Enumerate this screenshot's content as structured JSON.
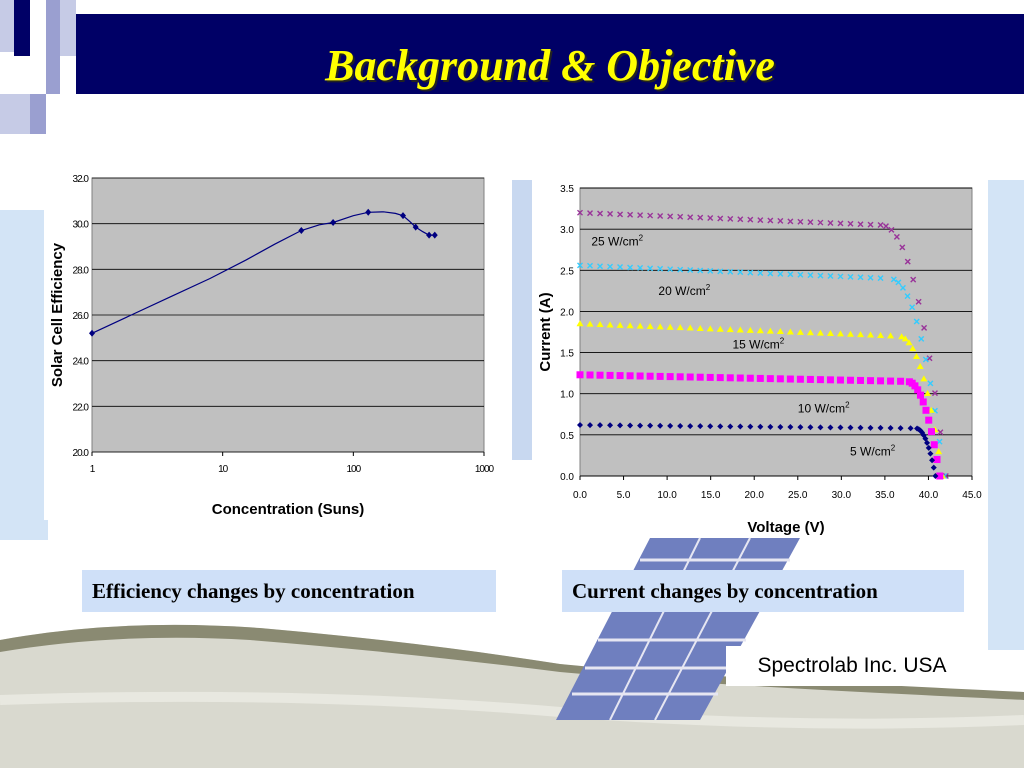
{
  "slide": {
    "title": "Background & Objective",
    "caption_left": "Efficiency changes by concentration",
    "caption_right": "Current changes by concentration",
    "credit": "Spectrolab Inc. USA",
    "colors": {
      "title_bar": "#000066",
      "title_text": "#ffff00",
      "caption_bg": "#cfe0f8"
    }
  },
  "chart_data": [
    {
      "type": "line",
      "title": "",
      "xlabel": "Concentration (Suns)",
      "ylabel": "Solar Cell Efficiency",
      "x_scale": "log",
      "xlim": [
        1,
        1000
      ],
      "ylim": [
        20.0,
        32.0
      ],
      "x_ticks": [
        "1",
        "10",
        "100",
        "1000"
      ],
      "y_ticks": [
        "20.0",
        "22.0",
        "24.0",
        "26.0",
        "28.0",
        "30.0",
        "32.0"
      ],
      "grid": true,
      "series": [
        {
          "color": "#000080",
          "points": [
            [
              1,
              25.2
            ],
            [
              40,
              29.7
            ],
            [
              70,
              30.05
            ],
            [
              130,
              30.5
            ],
            [
              240,
              30.35
            ],
            [
              300,
              29.85
            ],
            [
              380,
              29.5
            ],
            [
              420,
              29.5
            ]
          ],
          "curve": [
            [
              1,
              25.2
            ],
            [
              2,
              26.0
            ],
            [
              4,
              26.8
            ],
            [
              8,
              27.6
            ],
            [
              15,
              28.4
            ],
            [
              25,
              29.1
            ],
            [
              40,
              29.7
            ],
            [
              55,
              29.95
            ],
            [
              70,
              30.05
            ],
            [
              100,
              30.35
            ],
            [
              130,
              30.5
            ],
            [
              170,
              30.52
            ],
            [
              210,
              30.45
            ],
            [
              240,
              30.35
            ],
            [
              270,
              30.1
            ],
            [
              300,
              29.85
            ],
            [
              340,
              29.65
            ],
            [
              380,
              29.5
            ],
            [
              420,
              29.5
            ]
          ]
        }
      ]
    },
    {
      "type": "scatter",
      "title": "",
      "xlabel": "Voltage (V)",
      "ylabel": "Current (A)",
      "xlim": [
        0.0,
        45.0
      ],
      "ylim": [
        0.0,
        3.5
      ],
      "x_ticks": [
        "0.0",
        "5.0",
        "10.0",
        "15.0",
        "20.0",
        "25.0",
        "30.0",
        "35.0",
        "40.0",
        "45.0"
      ],
      "y_ticks": [
        "0.0",
        "0.5",
        "1.0",
        "1.5",
        "2.0",
        "2.5",
        "3.0",
        "3.5"
      ],
      "grid": true,
      "series": [
        {
          "name": "25 W/cm2",
          "color": "#993399",
          "marker": "x",
          "isc": 3.2,
          "voc": 42.0,
          "knee": 34.5,
          "slope_end": 3.05,
          "label_pos": [
            1.3,
            2.8
          ]
        },
        {
          "name": "20 W/cm2",
          "color": "#33ccff",
          "marker": "x",
          "isc": 2.56,
          "voc": 41.8,
          "knee": 35.5,
          "slope_end": 2.4,
          "label_pos": [
            9.0,
            2.2
          ]
        },
        {
          "name": "15 W/cm2",
          "color": "#ffff00",
          "marker": "triangle",
          "isc": 1.85,
          "voc": 41.6,
          "knee": 36.5,
          "slope_end": 1.7,
          "label_pos": [
            17.5,
            1.55
          ]
        },
        {
          "name": "10 W/cm2",
          "color": "#ff00ff",
          "marker": "square",
          "isc": 1.23,
          "voc": 41.3,
          "knee": 37.5,
          "slope_end": 1.15,
          "label_pos": [
            25.0,
            0.77
          ]
        },
        {
          "name": "5 W/cm2",
          "color": "#000080",
          "marker": "diamond",
          "isc": 0.62,
          "voc": 40.8,
          "knee": 38.5,
          "slope_end": 0.58,
          "label_pos": [
            31.0,
            0.25
          ]
        }
      ]
    }
  ]
}
